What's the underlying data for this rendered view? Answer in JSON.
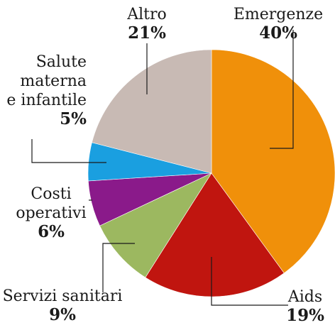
{
  "chart_data": {
    "type": "pie",
    "title": "",
    "slices": [
      {
        "label": "Emergenze",
        "value": 40,
        "pct_label": "40%",
        "color": "#F0900A"
      },
      {
        "label": "Aids",
        "value": 19,
        "pct_label": "19%",
        "color": "#C0150F"
      },
      {
        "label": "Servizi sanitari",
        "value": 9,
        "pct_label": "9%",
        "color": "#9CB860"
      },
      {
        "label": "Costi operativi",
        "value": 6,
        "pct_label": "6%",
        "color": "#8A1A8A"
      },
      {
        "label": "Salute materna e infantile",
        "value": 5,
        "pct_label": "5%",
        "color": "#1A9FE0"
      },
      {
        "label": "Altro",
        "value": 21,
        "pct_label": "21%",
        "color": "#C8BAB4"
      }
    ],
    "label_lines": {
      "Emergenze": [
        "Emergenze"
      ],
      "Aids": [
        "Aids"
      ],
      "Servizi sanitari": [
        "Servizi sanitari"
      ],
      "Costi operativi": [
        "Costi",
        "operativi"
      ],
      "Salute materna e infantile": [
        "Salute",
        "materna",
        "e infantile"
      ],
      "Altro": [
        "Altro"
      ]
    },
    "start_angle_deg": 0,
    "direction": "clockwise",
    "legend": "none"
  }
}
